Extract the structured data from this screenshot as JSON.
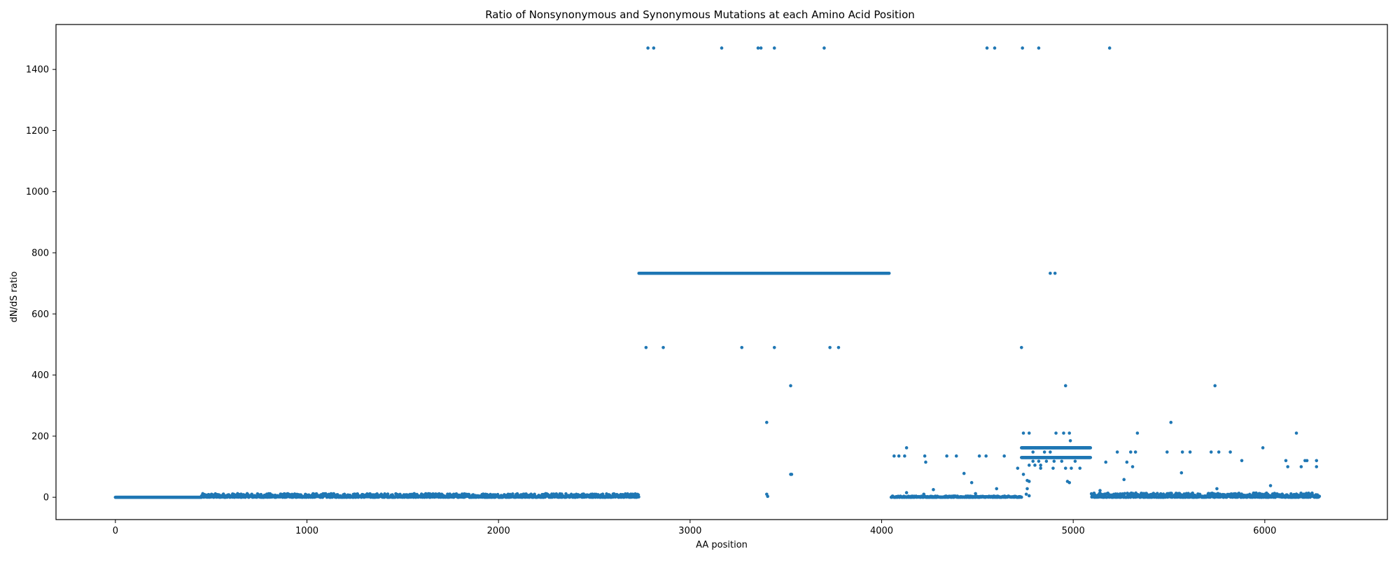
{
  "chart_data": {
    "type": "scatter",
    "title": "Ratio of Nonsynonymous and Synonymous Mutations at each Amino Acid Position",
    "xlabel": "AA position",
    "ylabel": "dN/dS ratio",
    "xlim": [
      -310,
      6640
    ],
    "ylim": [
      -73,
      1547
    ],
    "xticks": [
      0,
      1000,
      2000,
      3000,
      4000,
      5000,
      6000
    ],
    "yticks": [
      0,
      200,
      400,
      600,
      800,
      1000,
      1200,
      1400
    ],
    "grid": false,
    "marker_color": "#1f77b4",
    "segments": [
      {
        "name": "zero-run",
        "x_start": 0,
        "x_end": 450,
        "y_min": 0,
        "y_max": 0
      },
      {
        "name": "low-noise-1",
        "x_start": 450,
        "x_end": 2733,
        "y_min": 0,
        "y_max": 12
      },
      {
        "name": "plateau",
        "x_start": 2733,
        "x_end": 4040,
        "y_min": 733,
        "y_max": 733
      },
      {
        "name": "low-noise-2",
        "x_start": 4050,
        "x_end": 4730,
        "y_min": 0,
        "y_max": 4
      },
      {
        "name": "band-160",
        "x_start": 4730,
        "x_end": 5090,
        "y_min": 162,
        "y_max": 162
      },
      {
        "name": "band-130",
        "x_start": 4730,
        "x_end": 5090,
        "y_min": 130,
        "y_max": 130
      },
      {
        "name": "low-noise-3",
        "x_start": 5095,
        "x_end": 6285,
        "y_min": 0,
        "y_max": 14
      }
    ],
    "points": [
      {
        "x": 2780,
        "y": 1470
      },
      {
        "x": 2810,
        "y": 1470
      },
      {
        "x": 3165,
        "y": 1470
      },
      {
        "x": 3355,
        "y": 1470
      },
      {
        "x": 3370,
        "y": 1470
      },
      {
        "x": 3440,
        "y": 1470
      },
      {
        "x": 3700,
        "y": 1470
      },
      {
        "x": 4550,
        "y": 1470
      },
      {
        "x": 4590,
        "y": 1470
      },
      {
        "x": 4735,
        "y": 1470
      },
      {
        "x": 4820,
        "y": 1470
      },
      {
        "x": 5190,
        "y": 1470
      },
      {
        "x": 2770,
        "y": 490
      },
      {
        "x": 2860,
        "y": 490
      },
      {
        "x": 3270,
        "y": 490
      },
      {
        "x": 3440,
        "y": 490
      },
      {
        "x": 3730,
        "y": 490
      },
      {
        "x": 3775,
        "y": 490
      },
      {
        "x": 4730,
        "y": 490
      },
      {
        "x": 4880,
        "y": 733
      },
      {
        "x": 4905,
        "y": 733
      },
      {
        "x": 3525,
        "y": 365
      },
      {
        "x": 4960,
        "y": 365
      },
      {
        "x": 5740,
        "y": 365
      },
      {
        "x": 3400,
        "y": 245
      },
      {
        "x": 5510,
        "y": 245
      },
      {
        "x": 3400,
        "y": 10
      },
      {
        "x": 3405,
        "y": 3
      },
      {
        "x": 3525,
        "y": 75
      },
      {
        "x": 3530,
        "y": 75
      },
      {
        "x": 4740,
        "y": 210
      },
      {
        "x": 4770,
        "y": 210
      },
      {
        "x": 4910,
        "y": 210
      },
      {
        "x": 4950,
        "y": 210
      },
      {
        "x": 4980,
        "y": 210
      },
      {
        "x": 5335,
        "y": 210
      },
      {
        "x": 6165,
        "y": 210
      },
      {
        "x": 4985,
        "y": 185
      },
      {
        "x": 4130,
        "y": 162
      },
      {
        "x": 5990,
        "y": 162
      },
      {
        "x": 4065,
        "y": 135
      },
      {
        "x": 4090,
        "y": 135
      },
      {
        "x": 4120,
        "y": 135
      },
      {
        "x": 4225,
        "y": 135
      },
      {
        "x": 4340,
        "y": 135
      },
      {
        "x": 4390,
        "y": 135
      },
      {
        "x": 4510,
        "y": 135
      },
      {
        "x": 4545,
        "y": 135
      },
      {
        "x": 4640,
        "y": 135
      },
      {
        "x": 5230,
        "y": 148
      },
      {
        "x": 5300,
        "y": 148
      },
      {
        "x": 5325,
        "y": 148
      },
      {
        "x": 5490,
        "y": 148
      },
      {
        "x": 5570,
        "y": 148
      },
      {
        "x": 5610,
        "y": 148
      },
      {
        "x": 5720,
        "y": 148
      },
      {
        "x": 5760,
        "y": 148
      },
      {
        "x": 5820,
        "y": 148
      },
      {
        "x": 4790,
        "y": 148
      },
      {
        "x": 4850,
        "y": 148
      },
      {
        "x": 4880,
        "y": 148
      },
      {
        "x": 4790,
        "y": 118
      },
      {
        "x": 4820,
        "y": 118
      },
      {
        "x": 4860,
        "y": 118
      },
      {
        "x": 4900,
        "y": 118
      },
      {
        "x": 4940,
        "y": 118
      },
      {
        "x": 5010,
        "y": 118
      },
      {
        "x": 4230,
        "y": 115
      },
      {
        "x": 5170,
        "y": 115
      },
      {
        "x": 5280,
        "y": 115
      },
      {
        "x": 5880,
        "y": 120
      },
      {
        "x": 6110,
        "y": 120
      },
      {
        "x": 6210,
        "y": 120
      },
      {
        "x": 6220,
        "y": 120
      },
      {
        "x": 6270,
        "y": 120
      },
      {
        "x": 4770,
        "y": 105
      },
      {
        "x": 4800,
        "y": 105
      },
      {
        "x": 4830,
        "y": 105
      },
      {
        "x": 4710,
        "y": 95
      },
      {
        "x": 4830,
        "y": 95
      },
      {
        "x": 4895,
        "y": 95
      },
      {
        "x": 4960,
        "y": 95
      },
      {
        "x": 4990,
        "y": 95
      },
      {
        "x": 5035,
        "y": 95
      },
      {
        "x": 5310,
        "y": 100
      },
      {
        "x": 6120,
        "y": 100
      },
      {
        "x": 6190,
        "y": 100
      },
      {
        "x": 6270,
        "y": 100
      },
      {
        "x": 4430,
        "y": 78
      },
      {
        "x": 4740,
        "y": 75
      },
      {
        "x": 5565,
        "y": 80
      },
      {
        "x": 4760,
        "y": 55
      },
      {
        "x": 4770,
        "y": 52
      },
      {
        "x": 4970,
        "y": 52
      },
      {
        "x": 4980,
        "y": 48
      },
      {
        "x": 5265,
        "y": 58
      },
      {
        "x": 4470,
        "y": 48
      },
      {
        "x": 6030,
        "y": 38
      },
      {
        "x": 4270,
        "y": 25
      },
      {
        "x": 4600,
        "y": 28
      },
      {
        "x": 4760,
        "y": 28
      },
      {
        "x": 5140,
        "y": 22
      },
      {
        "x": 5750,
        "y": 28
      },
      {
        "x": 4130,
        "y": 15
      },
      {
        "x": 4220,
        "y": 10
      },
      {
        "x": 4490,
        "y": 12
      },
      {
        "x": 4755,
        "y": 10
      },
      {
        "x": 4770,
        "y": 5
      }
    ]
  }
}
